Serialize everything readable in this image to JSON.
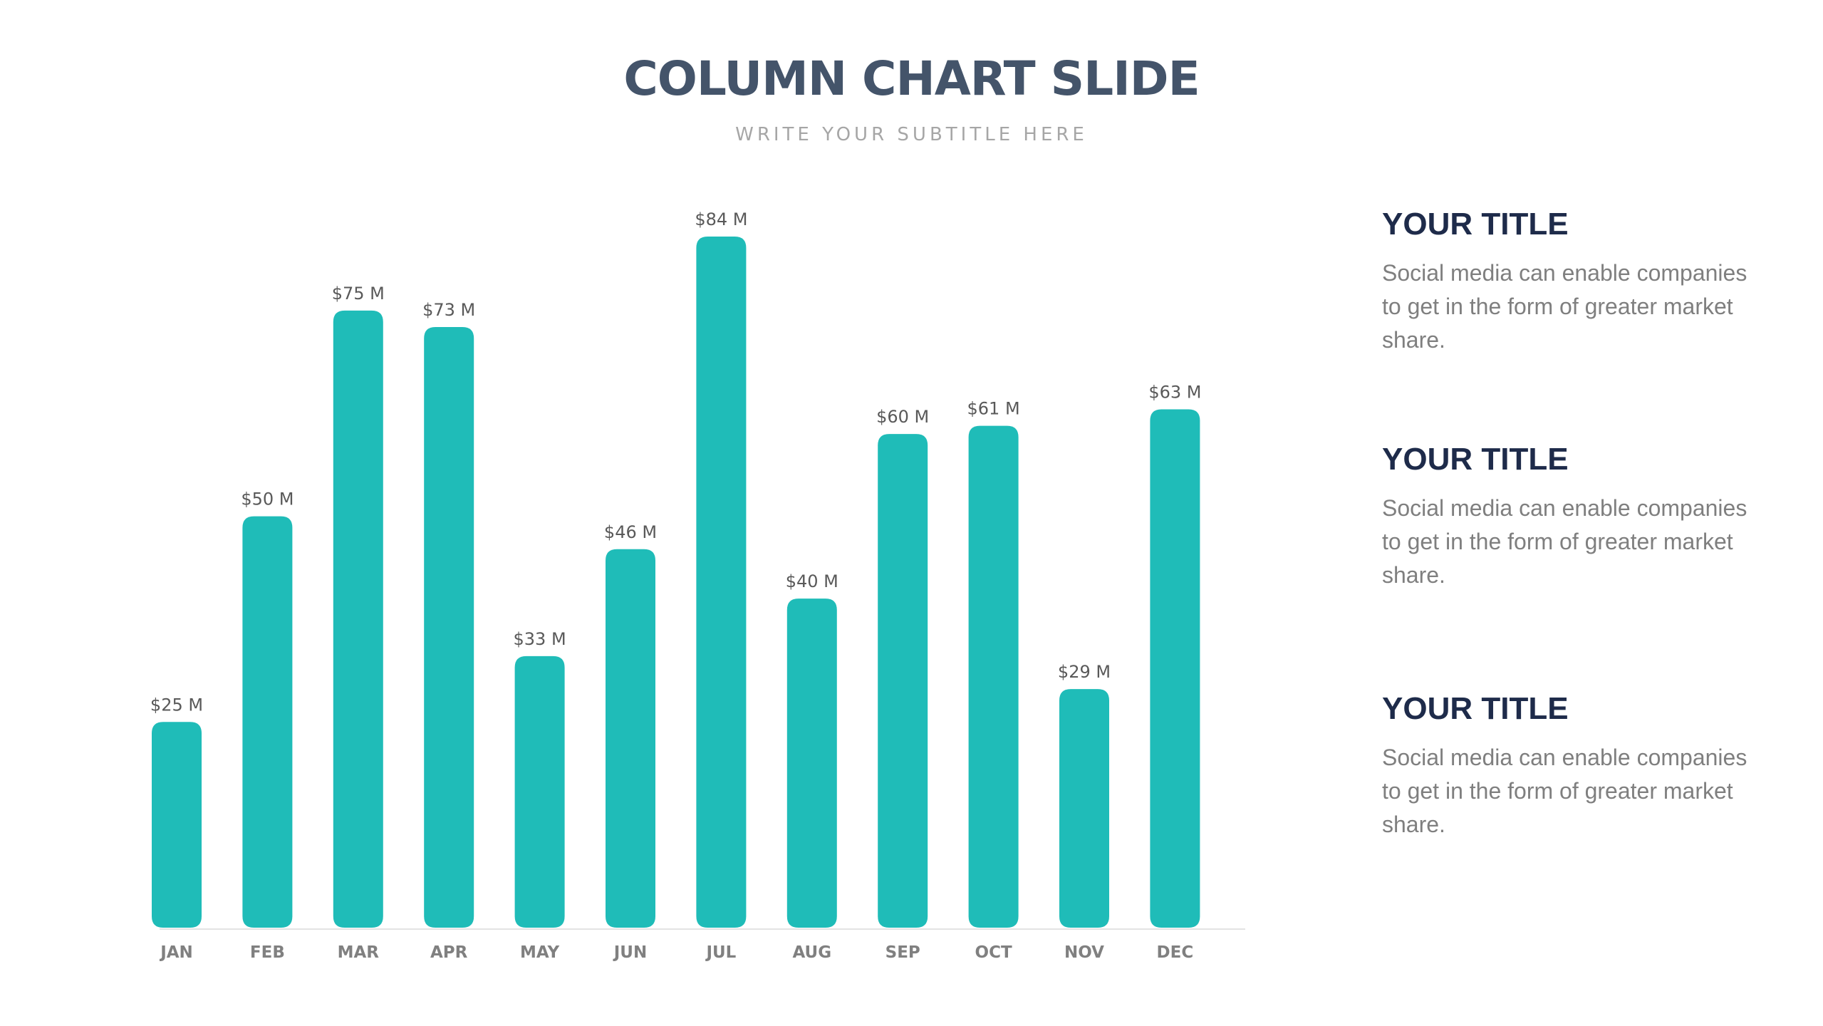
{
  "slide": {
    "title": "COLUMN CHART SLIDE",
    "subtitle": "WRITE YOUR SUBTITLE HERE"
  },
  "chart_data": {
    "type": "bar",
    "categories": [
      "JAN",
      "FEB",
      "MAR",
      "APR",
      "MAY",
      "JUN",
      "JUL",
      "AUG",
      "SEP",
      "OCT",
      "NOV",
      "DEC"
    ],
    "values": [
      25,
      50,
      75,
      73,
      33,
      46,
      84,
      40,
      60,
      61,
      29,
      63
    ],
    "data_labels": [
      "$25 M",
      "$50 M",
      "$75 M",
      "$73 M",
      "$33 M",
      "$46 M",
      "$84 M",
      "$40 M",
      "$60 M",
      "$61 M",
      "$29 M",
      "$63 M"
    ],
    "ylim": [
      0,
      84
    ],
    "grid": false,
    "bar_color": "#1fbcb8",
    "axis_color": "#e3e3e3",
    "label_color": "#595959",
    "category_color": "#808080"
  },
  "side_panel": {
    "items": [
      {
        "heading": "YOUR TITLE",
        "text": "Social media can enable companies to get in the form of greater market share."
      },
      {
        "heading": "YOUR TITLE",
        "text": "Social media can enable companies to get in the form of greater market share."
      },
      {
        "heading": "YOUR TITLE",
        "text": "Social media can enable companies to get in the form of greater market share."
      }
    ]
  },
  "colors": {
    "title": "#44546a",
    "subtitle": "#a6a6a6",
    "side_heading": "#1e2b4a",
    "side_text": "#7f7f7f"
  }
}
